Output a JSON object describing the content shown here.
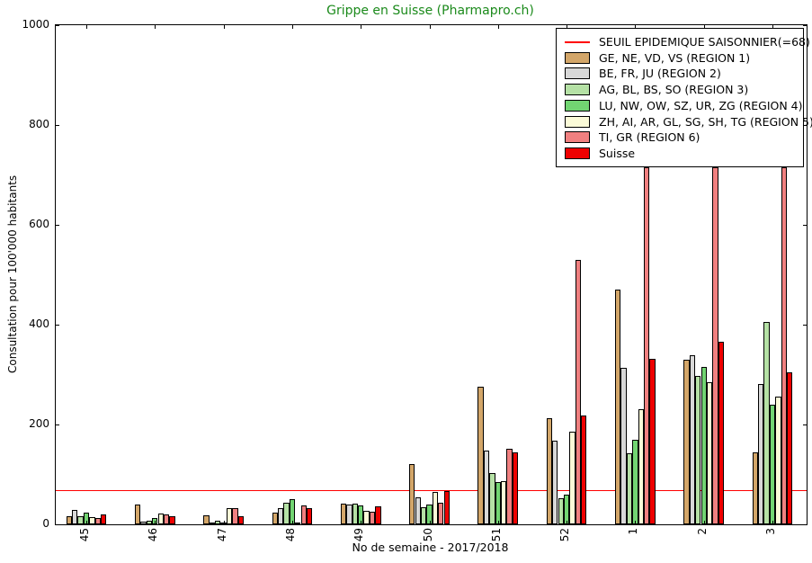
{
  "chart_data": {
    "type": "bar",
    "title": "Grippe en Suisse (Pharmapro.ch)",
    "title_color": "#1b8a1b",
    "xlabel": "No de semaine - 2017/2018",
    "ylabel": "Consultation pour 100'000 habitants",
    "ylim": [
      0,
      1000
    ],
    "yticks": [
      0,
      200,
      400,
      600,
      800,
      1000
    ],
    "grid": false,
    "legend_position": "upper right",
    "categories": [
      "45",
      "46",
      "47",
      "48",
      "49",
      "50",
      "51",
      "52",
      "1",
      "2",
      "3"
    ],
    "threshold": {
      "label": "SEUIL EPIDEMIQUE SAISONNIER(=68)",
      "value": 68,
      "color": "#ff0000"
    },
    "series": [
      {
        "name": "GE, NE, VD, VS (REGION 1)",
        "color": "#d3a669",
        "values": [
          16,
          39,
          18,
          23,
          42,
          120,
          275,
          213,
          471,
          330,
          144
        ]
      },
      {
        "name": "BE, FR, JU (REGION 2)",
        "color": "#d8d8d8",
        "values": [
          29,
          6,
          2,
          32,
          40,
          54,
          147,
          168,
          314,
          338,
          281
        ]
      },
      {
        "name": "AG, BL, BS, SO (REGION 3)",
        "color": "#b5e1a5",
        "values": [
          16,
          8,
          7,
          43,
          42,
          35,
          103,
          52,
          142,
          297,
          405
        ]
      },
      {
        "name": "LU, NW, OW, SZ, UR, ZG (REGION 4)",
        "color": "#72d572",
        "values": [
          24,
          13,
          2,
          51,
          38,
          39,
          84,
          60,
          170,
          316,
          240
        ]
      },
      {
        "name": "ZH, AI, AR, GL, SG, SH, TG (REGION 5)",
        "color": "#fbfbd8",
        "values": [
          15,
          21,
          32,
          3,
          27,
          65,
          86,
          185,
          230,
          284,
          255
        ]
      },
      {
        "name": "TI, GR (REGION 6)",
        "color": "#f08080",
        "values": [
          12,
          19,
          32,
          38,
          25,
          43,
          152,
          530,
          715,
          715,
          715
        ]
      },
      {
        "name": "Suisse",
        "color": "#ee0000",
        "values": [
          19,
          17,
          16,
          32,
          36,
          67,
          145,
          218,
          332,
          365,
          305
        ]
      }
    ],
    "note": "TI, GR (REGION 6) bars for weeks 1, 2 and 3 rise to the bottom edge of the legend box (~715) and their tops are hidden behind it"
  }
}
